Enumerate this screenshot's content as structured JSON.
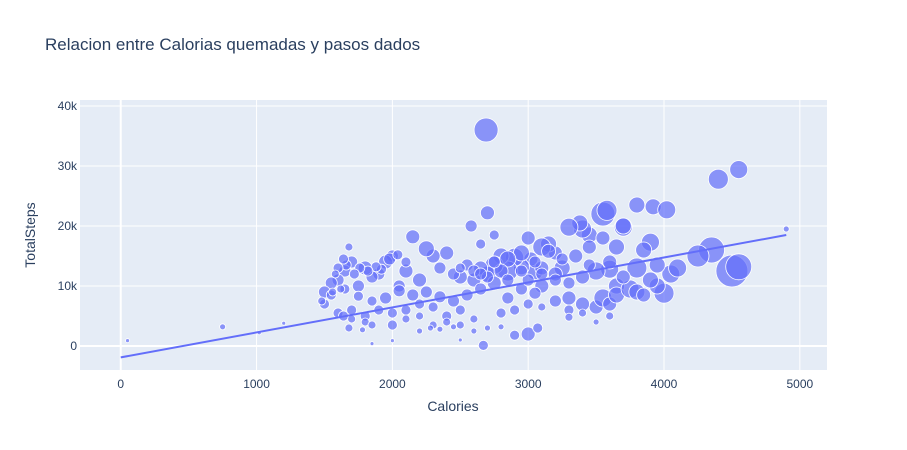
{
  "chart_data": {
    "type": "scatter",
    "title": "Relacion entre Calorias quemadas y pasos dados",
    "xlabel": "Calories",
    "ylabel": "TotalSteps",
    "xlim": [
      -300,
      5200
    ],
    "ylim": [
      -4000,
      41000
    ],
    "x_ticks": [
      0,
      1000,
      2000,
      3000,
      4000,
      5000
    ],
    "x_tick_labels": [
      "0",
      "1000",
      "2000",
      "3000",
      "4000",
      "5000"
    ],
    "y_ticks": [
      0,
      10000,
      20000,
      30000,
      40000
    ],
    "y_tick_labels": [
      "0",
      "10k",
      "20k",
      "30k",
      "40k"
    ],
    "grid": true,
    "colors": {
      "marker": "#636efa",
      "trendline": "#636efa",
      "plot_bg": "#e5ecf6",
      "grid": "#ffffff"
    },
    "trendline": {
      "x": [
        0,
        4900
      ],
      "y": [
        -1900,
        18500
      ]
    },
    "points": [
      [
        2690,
        36000,
        12
      ],
      [
        4400,
        27800,
        10
      ],
      [
        4550,
        29400,
        9
      ],
      [
        4500,
        12500,
        16
      ],
      [
        4550,
        13200,
        13
      ],
      [
        4350,
        16000,
        13
      ],
      [
        4250,
        15000,
        11
      ],
      [
        4000,
        8800,
        10
      ],
      [
        4050,
        12000,
        9
      ],
      [
        4100,
        13000,
        9
      ],
      [
        3950,
        10000,
        8
      ],
      [
        3900,
        17300,
        9
      ],
      [
        3800,
        13000,
        10
      ],
      [
        3850,
        16000,
        8
      ],
      [
        3700,
        19800,
        9
      ],
      [
        3550,
        22000,
        12
      ],
      [
        3580,
        22600,
        10
      ],
      [
        3600,
        12800,
        9
      ],
      [
        3650,
        10000,
        8
      ],
      [
        3500,
        12500,
        9
      ],
      [
        3450,
        18500,
        8
      ],
      [
        3400,
        19500,
        9
      ],
      [
        3380,
        20500,
        8
      ],
      [
        3300,
        19800,
        9
      ],
      [
        3250,
        13000,
        8
      ],
      [
        3200,
        15500,
        7
      ],
      [
        3150,
        17000,
        8
      ],
      [
        3100,
        16500,
        9
      ],
      [
        3050,
        12400,
        8
      ],
      [
        3020,
        14500,
        7
      ],
      [
        3000,
        18000,
        7
      ],
      [
        2950,
        13200,
        8
      ],
      [
        2900,
        14800,
        9
      ],
      [
        2850,
        12500,
        10
      ],
      [
        2800,
        15000,
        8
      ],
      [
        2750,
        13500,
        9
      ],
      [
        2700,
        12000,
        8
      ],
      [
        2650,
        13000,
        7
      ],
      [
        2600,
        11000,
        7
      ],
      [
        2550,
        13500,
        6
      ],
      [
        2500,
        11500,
        7
      ],
      [
        2450,
        12000,
        6
      ],
      [
        2400,
        15500,
        7
      ],
      [
        2350,
        13000,
        6
      ],
      [
        2300,
        15000,
        7
      ],
      [
        2250,
        16200,
        8
      ],
      [
        2200,
        11000,
        7
      ],
      [
        2150,
        18200,
        7
      ],
      [
        2100,
        12500,
        7
      ],
      [
        2050,
        10000,
        6
      ],
      [
        2000,
        15000,
        6
      ],
      [
        1950,
        14000,
        7
      ],
      [
        1900,
        12000,
        6
      ],
      [
        1850,
        11500,
        6
      ],
      [
        1800,
        13000,
        7
      ],
      [
        1750,
        10000,
        6
      ],
      [
        1700,
        14000,
        6
      ],
      [
        1650,
        12500,
        6
      ],
      [
        1600,
        11000,
        6
      ],
      [
        1550,
        10500,
        6
      ],
      [
        1500,
        9000,
        6
      ],
      [
        3920,
        23200,
        8
      ],
      [
        4020,
        22700,
        9
      ],
      [
        3800,
        23500,
        8
      ],
      [
        3700,
        20000,
        8
      ],
      [
        2700,
        22200,
        7
      ],
      [
        2580,
        20000,
        6
      ],
      [
        2750,
        18500,
        5
      ],
      [
        2650,
        17000,
        5
      ],
      [
        3000,
        2000,
        7
      ],
      [
        2900,
        1800,
        5
      ],
      [
        2670,
        100,
        5
      ],
      [
        3070,
        3000,
        5
      ],
      [
        3500,
        6500,
        7
      ],
      [
        3550,
        8000,
        9
      ],
      [
        3600,
        7000,
        7
      ],
      [
        3650,
        8500,
        8
      ],
      [
        3750,
        9500,
        9
      ],
      [
        3800,
        9000,
        8
      ],
      [
        3400,
        7000,
        7
      ],
      [
        3300,
        8000,
        7
      ],
      [
        3200,
        7500,
        6
      ],
      [
        3100,
        10000,
        7
      ],
      [
        3050,
        8800,
        6
      ],
      [
        2950,
        9500,
        6
      ],
      [
        2850,
        8000,
        6
      ],
      [
        2750,
        10500,
        7
      ],
      [
        2650,
        9500,
        6
      ],
      [
        2550,
        8500,
        6
      ],
      [
        2450,
        7500,
        6
      ],
      [
        2350,
        8200,
        6
      ],
      [
        2250,
        9000,
        6
      ],
      [
        2150,
        8500,
        6
      ],
      [
        2050,
        9200,
        6
      ],
      [
        1950,
        8000,
        6
      ],
      [
        1850,
        7500,
        5
      ],
      [
        1750,
        8300,
        5
      ],
      [
        1650,
        9500,
        5
      ],
      [
        1550,
        8500,
        5
      ],
      [
        2500,
        6000,
        5
      ],
      [
        2400,
        5000,
        5
      ],
      [
        2300,
        6500,
        5
      ],
      [
        2200,
        7000,
        5
      ],
      [
        2100,
        6000,
        5
      ],
      [
        2000,
        5500,
        5
      ],
      [
        1900,
        6000,
        5
      ],
      [
        1800,
        5000,
        5
      ],
      [
        1700,
        6000,
        5
      ],
      [
        1600,
        5500,
        5
      ],
      [
        1500,
        7000,
        5
      ],
      [
        2000,
        3500,
        5
      ],
      [
        2100,
        4500,
        4
      ],
      [
        2200,
        5000,
        4
      ],
      [
        2300,
        3500,
        4
      ],
      [
        2400,
        4000,
        4
      ],
      [
        2500,
        3500,
        4
      ],
      [
        2600,
        4500,
        4
      ],
      [
        2800,
        5500,
        5
      ],
      [
        2900,
        6000,
        5
      ],
      [
        3000,
        7000,
        5
      ],
      [
        3100,
        6500,
        4
      ],
      [
        3300,
        6000,
        5
      ],
      [
        3200,
        12000,
        7
      ],
      [
        3100,
        13000,
        7
      ],
      [
        2950,
        15500,
        8
      ],
      [
        2850,
        14500,
        8
      ],
      [
        2800,
        12500,
        7
      ],
      [
        2700,
        11500,
        6
      ],
      [
        2600,
        12500,
        6
      ],
      [
        2500,
        13000,
        5
      ],
      [
        3000,
        11000,
        6
      ],
      [
        3100,
        12000,
        6
      ],
      [
        3200,
        11000,
        6
      ],
      [
        3300,
        10500,
        6
      ],
      [
        3400,
        11500,
        7
      ],
      [
        3450,
        13500,
        6
      ],
      [
        3350,
        15000,
        7
      ],
      [
        3250,
        14500,
        6
      ],
      [
        3150,
        15800,
        7
      ],
      [
        3050,
        14000,
        6
      ],
      [
        2950,
        12500,
        6
      ],
      [
        2850,
        11000,
        6
      ],
      [
        2750,
        14000,
        6
      ],
      [
        2650,
        12000,
        6
      ],
      [
        3850,
        8500,
        7
      ],
      [
        3900,
        11000,
        8
      ],
      [
        3950,
        13500,
        8
      ],
      [
        3700,
        11500,
        7
      ],
      [
        3600,
        14000,
        7
      ],
      [
        3650,
        16500,
        8
      ],
      [
        3550,
        18000,
        7
      ],
      [
        3450,
        16500,
        7
      ],
      [
        1980,
        14500,
        6
      ],
      [
        2040,
        15200,
        5
      ],
      [
        2100,
        14000,
        5
      ],
      [
        1920,
        12800,
        5
      ],
      [
        1880,
        13200,
        5
      ],
      [
        1820,
        12500,
        5
      ],
      [
        1760,
        13000,
        5
      ],
      [
        1720,
        12000,
        5
      ],
      [
        1660,
        13500,
        5
      ],
      [
        1600,
        13000,
        5
      ],
      [
        1580,
        12000,
        4
      ],
      [
        1640,
        14500,
        5
      ],
      [
        1680,
        16500,
        4
      ],
      [
        1620,
        9500,
        4
      ],
      [
        1560,
        9000,
        4
      ],
      [
        1480,
        7500,
        4
      ],
      [
        1640,
        5000,
        5
      ],
      [
        1700,
        4500,
        4
      ],
      [
        1800,
        4000,
        4
      ],
      [
        1850,
        3500,
        4
      ],
      [
        1680,
        3000,
        4
      ],
      [
        1780,
        2700,
        3
      ],
      [
        2200,
        2500,
        3
      ],
      [
        2280,
        3000,
        3
      ],
      [
        2350,
        2800,
        3
      ],
      [
        2450,
        3200,
        3
      ],
      [
        2600,
        2500,
        3
      ],
      [
        2700,
        3000,
        3
      ],
      [
        2800,
        3200,
        3
      ],
      [
        4900,
        19500,
        3
      ],
      [
        750,
        3200,
        3
      ],
      [
        50,
        900,
        2
      ],
      [
        1200,
        3800,
        2
      ],
      [
        1020,
        2200,
        2
      ],
      [
        1850,
        400,
        2
      ],
      [
        2000,
        900,
        2
      ],
      [
        2500,
        1000,
        2
      ],
      [
        3300,
        4800,
        4
      ],
      [
        3400,
        5500,
        4
      ],
      [
        3500,
        4000,
        3
      ],
      [
        3600,
        5000,
        4
      ]
    ]
  }
}
